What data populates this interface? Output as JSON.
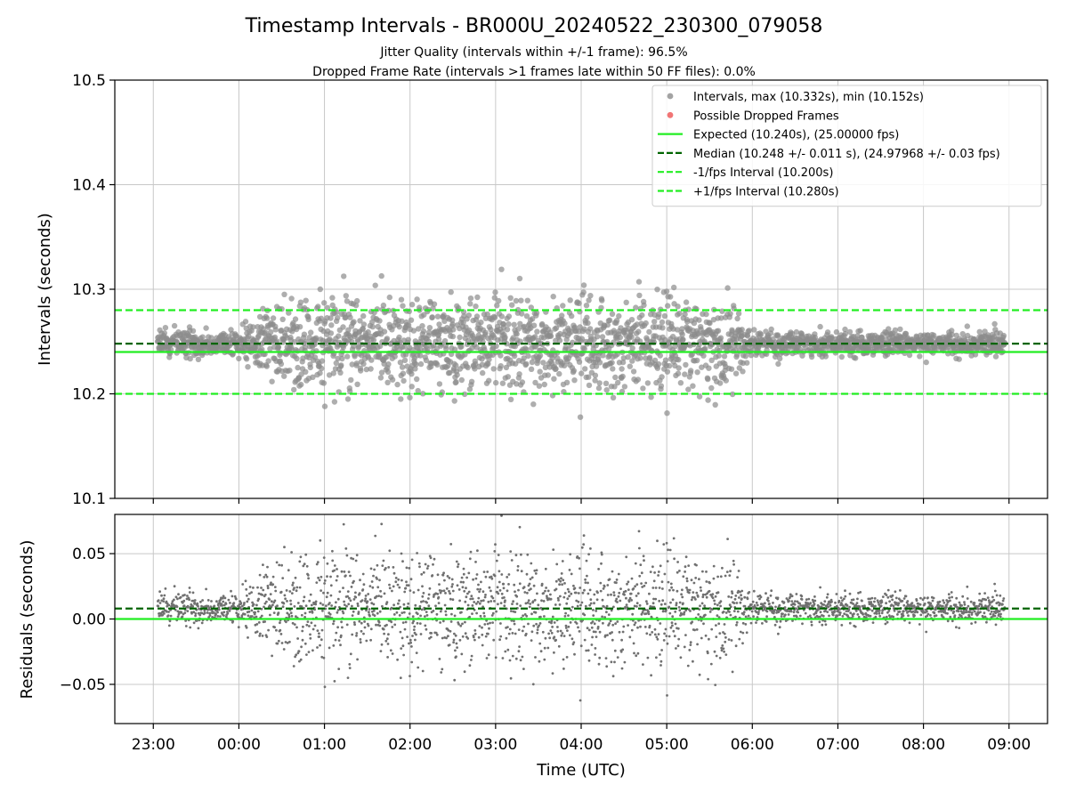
{
  "figure": {
    "title": "Timestamp Intervals - BR000U_20240522_230300_079058",
    "subtitle_jitter": "Jitter Quality (intervals within +/-1 frame): 96.5%",
    "subtitle_dropped": "Dropped Frame Rate (intervals >1 frames late within 50 FF files): 0.0%"
  },
  "chart_data": [
    {
      "type": "scatter",
      "panel": "intervals",
      "ylabel": "Intervals (seconds)",
      "ylim": [
        10.1,
        10.5
      ],
      "yticks": [
        "10.1",
        "10.2",
        "10.3",
        "10.4",
        "10.5"
      ],
      "xlim_hours": [
        -1.45,
        9.45
      ],
      "xlabel": "",
      "grid": true,
      "legend_position": "top-right",
      "series": [
        {
          "name": "Intervals, max (10.332s), min (10.152s)",
          "kind": "scatter",
          "color": "#8c8c8c"
        },
        {
          "name": "Possible Dropped Frames",
          "kind": "scatter",
          "color": "#f06666"
        },
        {
          "name": "Expected (10.240s), (25.00000 fps)",
          "kind": "hline",
          "y": 10.24,
          "color": "#22ee22"
        },
        {
          "name": "Median (10.248 +/- 0.011 s), (24.97968 +/- 0.03 fps)",
          "kind": "hline",
          "y": 10.248,
          "color": "#006400",
          "dashed": true
        },
        {
          "name": "-1/fps Interval (10.200s)",
          "kind": "hline",
          "y": 10.2,
          "color": "#22ee22",
          "dashed": true
        },
        {
          "name": "+1/fps Interval (10.280s)",
          "kind": "hline",
          "y": 10.28,
          "color": "#22ee22",
          "dashed": true
        }
      ],
      "points_summary": {
        "count_approx": 3500,
        "time_range": [
          "23:03",
          "08:57"
        ],
        "baseline_median": 10.248,
        "max": 10.332,
        "min": 10.152,
        "high_spread_window": [
          "00:30",
          "05:45"
        ]
      }
    },
    {
      "type": "scatter",
      "panel": "residuals",
      "ylabel": "Residuals (seconds)",
      "ylim": [
        -0.08,
        0.08
      ],
      "yticks": [
        "−0.05",
        "0.00",
        "0.05"
      ],
      "xlabel": "Time (UTC)",
      "xticks": [
        "23:00",
        "00:00",
        "01:00",
        "02:00",
        "03:00",
        "04:00",
        "05:00",
        "06:00",
        "07:00",
        "08:00",
        "09:00"
      ],
      "grid": true,
      "series": [
        {
          "kind": "scatter",
          "color": "#707070"
        },
        {
          "kind": "hline",
          "y": 0.0,
          "color": "#22ee22"
        },
        {
          "kind": "hline",
          "y": 0.008,
          "color": "#006400",
          "dashed": true
        }
      ]
    }
  ]
}
